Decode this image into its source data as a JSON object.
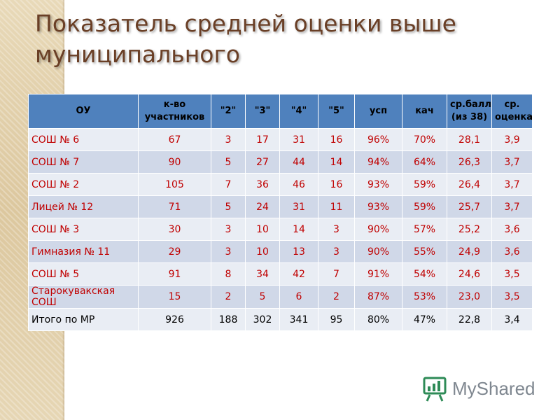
{
  "title": "Показатель средней оценки выше муниципального",
  "table": {
    "headers": [
      "ОУ",
      "к-во участников",
      "\"2\"",
      "\"3\"",
      "\"4\"",
      "\"5\"",
      "усп",
      "кач",
      "ср.балл (из 38)",
      "ср. оценка"
    ],
    "rows": [
      [
        "СОШ № 6",
        "67",
        "3",
        "17",
        "31",
        "16",
        "96%",
        "70%",
        "28,1",
        "3,9"
      ],
      [
        "СОШ № 7",
        "90",
        "5",
        "27",
        "44",
        "14",
        "94%",
        "64%",
        "26,3",
        "3,7"
      ],
      [
        "СОШ № 2",
        "105",
        "7",
        "36",
        "46",
        "16",
        "93%",
        "59%",
        "26,4",
        "3,7"
      ],
      [
        "Лицей № 12",
        "71",
        "5",
        "24",
        "31",
        "11",
        "93%",
        "59%",
        "25,7",
        "3,7"
      ],
      [
        "СОШ № 3",
        "30",
        "3",
        "10",
        "14",
        "3",
        "90%",
        "57%",
        "25,2",
        "3,6"
      ],
      [
        "Гимназия № 11",
        "29",
        "3",
        "10",
        "13",
        "3",
        "90%",
        "55%",
        "24,9",
        "3,6"
      ],
      [
        "СОШ № 5",
        "91",
        "8",
        "34",
        "42",
        "7",
        "91%",
        "54%",
        "24,6",
        "3,5"
      ],
      [
        "Старокувакская СОШ",
        "15",
        "2",
        "5",
        "6",
        "2",
        "87%",
        "53%",
        "23,0",
        "3,5"
      ],
      [
        "Итого по МР",
        "926",
        "188",
        "302",
        "341",
        "95",
        "80%",
        "47%",
        "22,8",
        "3,4"
      ]
    ]
  },
  "logo": {
    "text": "MyShared",
    "icon": "presentation-board-icon"
  },
  "colors": {
    "title": "#6a3f26",
    "header_bg": "#4f81bd",
    "row_light": "#e9edf4",
    "row_dark": "#d0d8e8",
    "cell_text": "#c00000",
    "total_text": "#000000"
  }
}
